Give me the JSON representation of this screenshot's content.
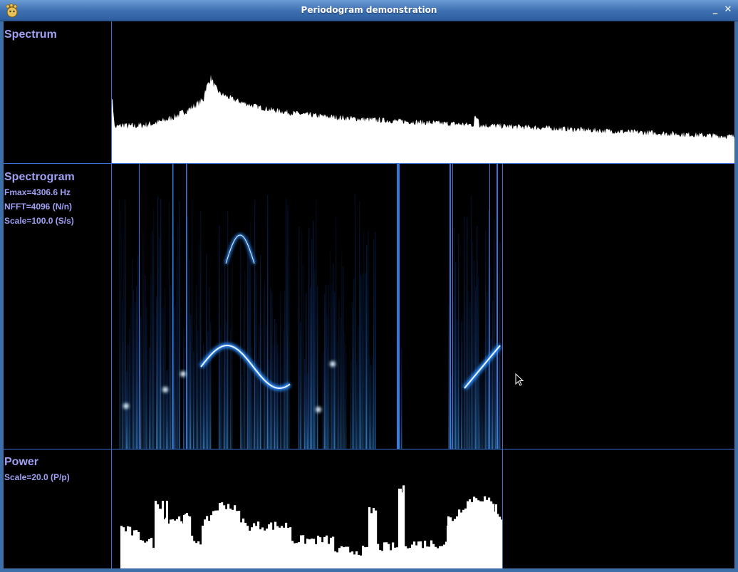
{
  "window": {
    "title": "Periodogram demonstration",
    "minimize_glyph": "_",
    "close_glyph": "✕",
    "icon": "gnome-foot-icon"
  },
  "panels": {
    "spectrum": {
      "title": "Spectrum"
    },
    "spectrogram": {
      "title": "Spectrogram",
      "fmax": "Fmax=4306.6 Hz",
      "nfft": "NFFT=4096 (N/n)",
      "scale": "Scale=100.0 (S/s)"
    },
    "power": {
      "title": "Power",
      "scale": "Scale=20.0 (P/p)"
    }
  },
  "colors": {
    "background": "#000000",
    "grid_lines": "#3a6fd6",
    "label_text": "#9fa0f4",
    "trace_fill": "#ffffff",
    "spectrogram_glow": "#2f8cff"
  },
  "mouse_cursor": "arrow-cursor-icon"
}
